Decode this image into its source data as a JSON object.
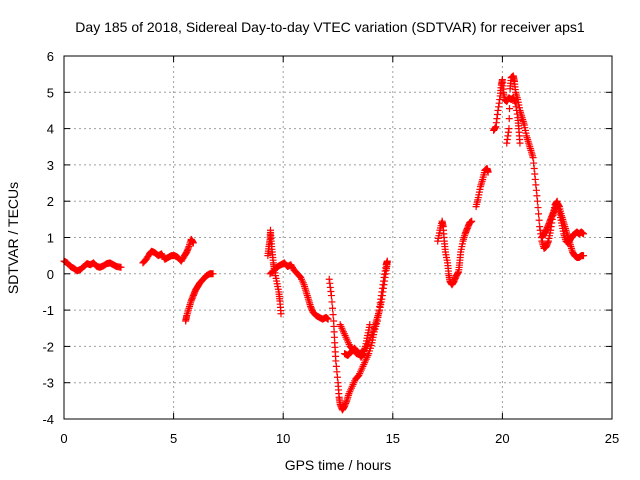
{
  "chart_data": {
    "type": "scatter",
    "title": "Day 185 of 2018, Sidereal Day-to-day VTEC variation (SDTVAR) for receiver aps1",
    "xlabel": "GPS time / hours",
    "ylabel": "SDTVAR / TECUs",
    "xlim": [
      0,
      25
    ],
    "ylim": [
      -4,
      6
    ],
    "x_ticks": [
      0,
      5,
      10,
      15,
      20,
      25
    ],
    "y_ticks": [
      -4,
      -3,
      -2,
      -1,
      0,
      1,
      2,
      3,
      4,
      5,
      6
    ],
    "x_tick_labels": [
      "0",
      "5",
      "10",
      "15",
      "20",
      "25"
    ],
    "y_tick_labels": [
      "-4",
      "-3",
      "-2",
      "-1",
      "0",
      "1",
      "2",
      "3",
      "4",
      "5",
      "6"
    ],
    "grid": true,
    "legend": "none",
    "marker": "plus",
    "color": "#ff0000",
    "segments": [
      {
        "points": [
          [
            0.0,
            0.35
          ],
          [
            0.15,
            0.3
          ],
          [
            0.3,
            0.2
          ],
          [
            0.45,
            0.15
          ],
          [
            0.6,
            0.08
          ],
          [
            0.75,
            0.12
          ],
          [
            0.9,
            0.2
          ],
          [
            1.05,
            0.28
          ],
          [
            1.2,
            0.25
          ],
          [
            1.35,
            0.3
          ],
          [
            1.5,
            0.2
          ],
          [
            1.65,
            0.18
          ],
          [
            1.8,
            0.22
          ],
          [
            1.95,
            0.28
          ],
          [
            2.1,
            0.3
          ],
          [
            2.25,
            0.25
          ],
          [
            2.4,
            0.2
          ],
          [
            2.6,
            0.18
          ]
        ]
      },
      {
        "points": [
          [
            3.6,
            0.3
          ],
          [
            3.75,
            0.4
          ],
          [
            3.9,
            0.55
          ],
          [
            4.0,
            0.62
          ],
          [
            4.15,
            0.58
          ],
          [
            4.3,
            0.5
          ],
          [
            4.45,
            0.55
          ],
          [
            4.6,
            0.4
          ],
          [
            4.75,
            0.45
          ],
          [
            4.9,
            0.5
          ],
          [
            5.05,
            0.5
          ],
          [
            5.2,
            0.45
          ],
          [
            5.35,
            0.35
          ],
          [
            5.5,
            0.5
          ],
          [
            5.6,
            0.6
          ],
          [
            5.7,
            0.75
          ],
          [
            5.8,
            0.95
          ],
          [
            5.85,
            0.9
          ],
          [
            5.9,
            0.85
          ]
        ]
      },
      {
        "points": [
          [
            5.55,
            -1.3
          ],
          [
            5.6,
            -1.15
          ],
          [
            5.7,
            -0.95
          ],
          [
            5.8,
            -0.75
          ],
          [
            5.9,
            -0.6
          ],
          [
            6.0,
            -0.45
          ],
          [
            6.1,
            -0.35
          ],
          [
            6.2,
            -0.25
          ],
          [
            6.35,
            -0.15
          ],
          [
            6.5,
            -0.05
          ],
          [
            6.65,
            0.0
          ],
          [
            6.8,
            0.0
          ]
        ]
      },
      {
        "points": [
          [
            9.3,
            0.5
          ],
          [
            9.35,
            0.75
          ],
          [
            9.4,
            0.95
          ],
          [
            9.42,
            1.2
          ],
          [
            9.45,
            0.9
          ],
          [
            9.5,
            0.6
          ],
          [
            9.55,
            0.3
          ],
          [
            9.6,
            0.1
          ],
          [
            9.7,
            -0.2
          ],
          [
            9.8,
            -0.5
          ],
          [
            9.85,
            -0.75
          ],
          [
            9.9,
            -1.1
          ]
        ]
      },
      {
        "points": [
          [
            9.4,
            0.0
          ],
          [
            9.6,
            0.1
          ],
          [
            9.75,
            0.2
          ],
          [
            9.9,
            0.25
          ],
          [
            10.05,
            0.3
          ],
          [
            10.2,
            0.2
          ],
          [
            10.35,
            0.25
          ],
          [
            10.5,
            0.1
          ],
          [
            10.65,
            0.0
          ],
          [
            10.8,
            -0.1
          ],
          [
            10.95,
            -0.3
          ],
          [
            11.05,
            -0.5
          ],
          [
            11.15,
            -0.7
          ],
          [
            11.25,
            -0.9
          ],
          [
            11.35,
            -1.05
          ],
          [
            11.5,
            -1.15
          ],
          [
            11.65,
            -1.2
          ],
          [
            11.8,
            -1.25
          ],
          [
            11.95,
            -1.2
          ],
          [
            12.05,
            -1.25
          ]
        ]
      },
      {
        "points": [
          [
            12.6,
            -1.4
          ],
          [
            12.75,
            -1.6
          ],
          [
            12.9,
            -1.8
          ],
          [
            13.05,
            -2.0
          ],
          [
            13.2,
            -2.1
          ],
          [
            13.35,
            -2.2
          ],
          [
            13.5,
            -2.2
          ],
          [
            13.7,
            -2.1
          ],
          [
            13.9,
            -1.9
          ],
          [
            14.1,
            -1.6
          ],
          [
            14.2,
            -1.4
          ],
          [
            14.3,
            -1.2
          ],
          [
            14.4,
            -1.0
          ],
          [
            14.5,
            -0.7
          ],
          [
            14.6,
            -0.3
          ],
          [
            14.7,
            0.1
          ],
          [
            14.75,
            0.3
          ]
        ]
      },
      {
        "points": [
          [
            12.8,
            -2.2
          ],
          [
            12.95,
            -2.25
          ],
          [
            13.1,
            -2.15
          ],
          [
            13.25,
            -2.05
          ],
          [
            13.4,
            -2.15
          ],
          [
            13.55,
            -2.3
          ],
          [
            13.65,
            -2.2
          ],
          [
            13.75,
            -2.0
          ],
          [
            13.85,
            -1.7
          ],
          [
            13.95,
            -1.4
          ]
        ]
      },
      {
        "points": [
          [
            12.1,
            -0.15
          ],
          [
            12.2,
            -0.6
          ],
          [
            12.3,
            -1.3
          ],
          [
            12.35,
            -1.9
          ],
          [
            12.4,
            -2.4
          ],
          [
            12.5,
            -3.0
          ],
          [
            12.55,
            -3.4
          ],
          [
            12.6,
            -3.6
          ],
          [
            12.7,
            -3.75
          ],
          [
            12.8,
            -3.65
          ],
          [
            12.9,
            -3.5
          ],
          [
            13.0,
            -3.3
          ],
          [
            13.15,
            -3.1
          ],
          [
            13.3,
            -2.9
          ],
          [
            13.45,
            -2.8
          ],
          [
            13.6,
            -2.6
          ],
          [
            13.75,
            -2.4
          ],
          [
            13.9,
            -2.2
          ],
          [
            14.05,
            -1.9
          ],
          [
            14.15,
            -1.6
          ],
          [
            14.3,
            -1.3
          ],
          [
            14.4,
            -0.9
          ],
          [
            14.5,
            -0.5
          ],
          [
            14.6,
            -0.1
          ],
          [
            14.7,
            0.25
          ],
          [
            14.75,
            0.35
          ]
        ]
      },
      {
        "points": [
          [
            17.05,
            0.9
          ],
          [
            17.15,
            1.2
          ],
          [
            17.25,
            1.45
          ],
          [
            17.3,
            1.3
          ],
          [
            17.35,
            0.9
          ],
          [
            17.4,
            0.6
          ],
          [
            17.5,
            0.3
          ],
          [
            17.55,
            0.0
          ],
          [
            17.6,
            -0.2
          ],
          [
            17.7,
            -0.3
          ],
          [
            17.8,
            -0.2
          ],
          [
            17.9,
            -0.05
          ],
          [
            18.0,
            0.05
          ],
          [
            18.05,
            0.3
          ],
          [
            18.1,
            0.6
          ],
          [
            18.2,
            0.9
          ],
          [
            18.3,
            1.1
          ],
          [
            18.4,
            1.25
          ],
          [
            18.5,
            1.4
          ],
          [
            18.6,
            1.45
          ]
        ]
      },
      {
        "points": [
          [
            18.8,
            1.85
          ],
          [
            18.9,
            2.1
          ],
          [
            19.0,
            2.4
          ],
          [
            19.1,
            2.6
          ],
          [
            19.2,
            2.85
          ],
          [
            19.3,
            2.9
          ],
          [
            19.35,
            2.8
          ]
        ]
      },
      {
        "points": [
          [
            19.6,
            3.95
          ],
          [
            19.7,
            4.05
          ],
          [
            19.8,
            4.5
          ],
          [
            19.9,
            4.9
          ],
          [
            19.95,
            5.2
          ],
          [
            20.0,
            5.35
          ],
          [
            20.05,
            5.0
          ],
          [
            20.1,
            4.8
          ],
          [
            20.2,
            4.75
          ],
          [
            20.3,
            4.85
          ],
          [
            20.4,
            4.8
          ],
          [
            20.5,
            4.85
          ],
          [
            20.6,
            4.7
          ],
          [
            20.7,
            4.3
          ],
          [
            20.75,
            4.0
          ],
          [
            20.8,
            3.6
          ]
        ]
      },
      {
        "points": [
          [
            20.2,
            3.6
          ],
          [
            20.3,
            4.0
          ],
          [
            20.35,
            5.1
          ],
          [
            20.4,
            5.4
          ],
          [
            20.5,
            5.45
          ],
          [
            20.55,
            5.3
          ],
          [
            20.6,
            5.0
          ],
          [
            20.7,
            4.8
          ],
          [
            20.8,
            4.5
          ],
          [
            20.9,
            4.3
          ],
          [
            21.0,
            4.1
          ],
          [
            21.1,
            3.8
          ],
          [
            21.2,
            3.6
          ],
          [
            21.3,
            3.4
          ],
          [
            21.4,
            3.2
          ],
          [
            21.5,
            2.6
          ],
          [
            21.6,
            2.0
          ],
          [
            21.7,
            1.3
          ],
          [
            21.8,
            0.9
          ],
          [
            21.9,
            0.7
          ],
          [
            22.0,
            0.75
          ],
          [
            22.1,
            0.9
          ],
          [
            22.2,
            1.2
          ],
          [
            22.3,
            1.6
          ],
          [
            22.4,
            1.9
          ],
          [
            22.5,
            2.0
          ],
          [
            22.6,
            1.7
          ],
          [
            22.7,
            1.4
          ],
          [
            22.8,
            1.1
          ],
          [
            22.9,
            0.9
          ],
          [
            23.0,
            0.85
          ],
          [
            23.1,
            0.95
          ],
          [
            23.2,
            1.05
          ],
          [
            23.3,
            1.1
          ],
          [
            23.4,
            1.15
          ],
          [
            23.5,
            1.1
          ],
          [
            23.6,
            1.15
          ],
          [
            23.7,
            1.1
          ]
        ]
      },
      {
        "points": [
          [
            21.8,
            1.0
          ],
          [
            21.9,
            1.1
          ],
          [
            22.0,
            1.2
          ],
          [
            22.1,
            1.35
          ],
          [
            22.2,
            1.5
          ],
          [
            22.3,
            1.65
          ],
          [
            22.4,
            1.8
          ],
          [
            22.5,
            1.95
          ],
          [
            22.6,
            1.85
          ],
          [
            22.7,
            1.6
          ],
          [
            22.8,
            1.4
          ],
          [
            22.9,
            1.2
          ],
          [
            23.0,
            1.0
          ],
          [
            23.1,
            0.8
          ],
          [
            23.2,
            0.6
          ],
          [
            23.3,
            0.5
          ],
          [
            23.4,
            0.45
          ],
          [
            23.5,
            0.45
          ],
          [
            23.6,
            0.5
          ],
          [
            23.7,
            0.5
          ]
        ]
      }
    ]
  }
}
